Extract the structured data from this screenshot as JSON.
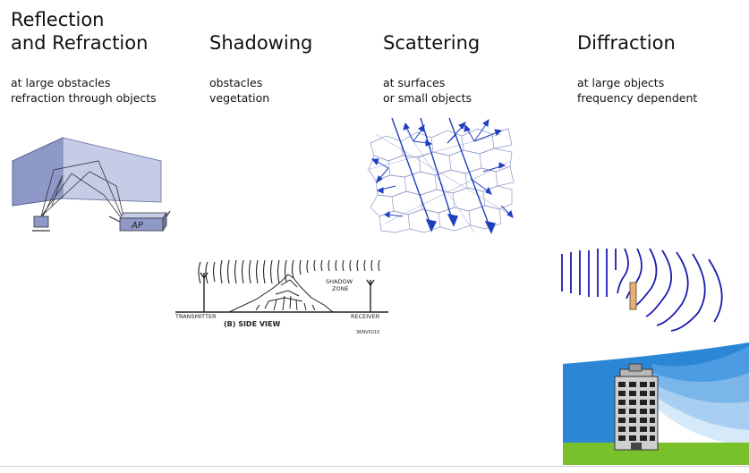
{
  "sections": [
    {
      "title_lines": [
        "Reflection",
        "and Refraction"
      ],
      "desc_lines": [
        "at large obstacles",
        "refraction through objects"
      ]
    },
    {
      "title_lines": [
        "Shadowing"
      ],
      "desc_lines": [
        "obstacles",
        "vegetation"
      ]
    },
    {
      "title_lines": [
        "Scattering"
      ],
      "desc_lines": [
        "at surfaces",
        "or small objects"
      ]
    },
    {
      "title_lines": [
        "Diffraction"
      ],
      "desc_lines": [
        "at large objects",
        "frequency dependent"
      ]
    }
  ],
  "figures": {
    "reflection": {
      "device_label": "AP"
    },
    "shadowing": {
      "transmitter_label": "TRANSMITTER",
      "receiver_label": "RECEIVER",
      "shadow_label_1": "SHADOW",
      "shadow_label_2": "ZONE",
      "caption": "(B)  SIDE VIEW",
      "code": "36NV5010"
    }
  },
  "colors": {
    "wall": "#9aa3cc",
    "wall_light": "#c9cfe8",
    "scatter_arrow": "#1f3fbf",
    "scatter_mesh": "#8e96c4",
    "wave": "#1b1bb0",
    "sky": "#2b86d6",
    "grass": "#79c12b"
  }
}
